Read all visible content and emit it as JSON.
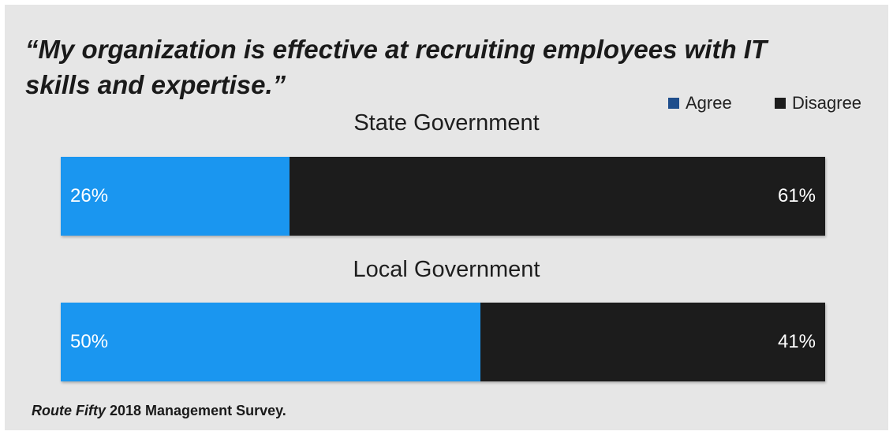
{
  "title": "“My organization is effective at recruiting employees with IT skills and expertise.”",
  "legend": [
    {
      "label": "Agree",
      "color": "#1f4e8c"
    },
    {
      "label": "Disagree",
      "color": "#1c1c1c"
    }
  ],
  "source": {
    "italic": "Route Fifty",
    "rest": " 2018 Management Survey."
  },
  "colors": {
    "agree_bar": "#1a96f0",
    "disagree_bar": "#1c1c1c"
  },
  "chart_data": {
    "type": "bar",
    "orientation": "horizontal",
    "stacked": true,
    "title": "“My organization is effective at recruiting employees with IT skills and expertise.”",
    "categories": [
      "State Government",
      "Local Government"
    ],
    "series": [
      {
        "name": "Agree",
        "values": [
          26,
          50
        ],
        "labels": [
          "26%",
          "50%"
        ]
      },
      {
        "name": "Disagree",
        "values": [
          61,
          41
        ],
        "labels": [
          "61%",
          "41%"
        ]
      }
    ],
    "unit": "%",
    "legend_position": "top-right",
    "grid": false
  }
}
